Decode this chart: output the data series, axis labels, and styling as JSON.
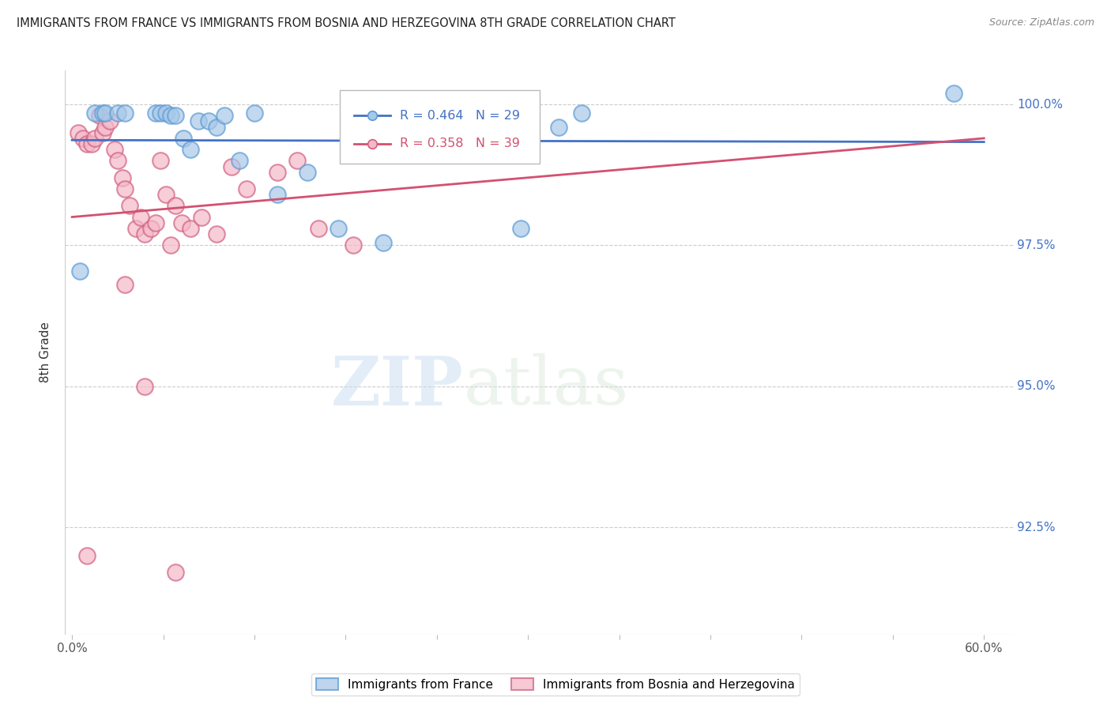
{
  "title": "IMMIGRANTS FROM FRANCE VS IMMIGRANTS FROM BOSNIA AND HERZEGOVINA 8TH GRADE CORRELATION CHART",
  "source": "Source: ZipAtlas.com",
  "ylabel": "8th Grade",
  "xlim": [
    -0.005,
    0.62
  ],
  "ylim": [
    0.906,
    1.006
  ],
  "ytick_values": [
    1.0,
    0.975,
    0.95,
    0.925
  ],
  "ytick_labels": [
    "100.0%",
    "97.5%",
    "95.0%",
    "92.5%"
  ],
  "xtick_values": [
    0.0,
    0.06,
    0.12,
    0.18,
    0.24,
    0.3,
    0.36,
    0.42,
    0.48,
    0.54,
    0.6
  ],
  "xtick_labels": [
    "0.0%",
    "",
    "",
    "",
    "",
    "",
    "",
    "",
    "",
    "",
    "60.0%"
  ],
  "legend_label1": "Immigrants from France",
  "legend_label2": "Immigrants from Bosnia and Herzegovina",
  "R1": "0.464",
  "N1": "29",
  "R2": "0.358",
  "N2": "39",
  "color_france_fill": "#a8c8e8",
  "color_france_edge": "#5b9bd5",
  "color_bosnia_fill": "#f4b8c8",
  "color_bosnia_edge": "#d06080",
  "color_france_line": "#4472C4",
  "color_bosnia_line": "#d45070",
  "color_ytick": "#4472C4",
  "color_xtick": "#555555",
  "watermark_zip": "ZIP",
  "watermark_atlas": "atlas",
  "france_x": [
    0.005,
    0.015,
    0.02,
    0.022,
    0.03,
    0.035,
    0.055,
    0.058,
    0.062,
    0.065,
    0.068,
    0.073,
    0.078,
    0.083,
    0.09,
    0.095,
    0.1,
    0.11,
    0.12,
    0.135,
    0.155,
    0.175,
    0.205,
    0.22,
    0.26,
    0.295,
    0.32,
    0.335,
    0.58
  ],
  "france_y": [
    0.9705,
    0.9985,
    0.9985,
    0.9985,
    0.9985,
    0.9985,
    0.9985,
    0.9985,
    0.9985,
    0.998,
    0.998,
    0.994,
    0.992,
    0.997,
    0.997,
    0.996,
    0.998,
    0.99,
    0.9985,
    0.984,
    0.988,
    0.978,
    0.9755,
    0.9985,
    0.9985,
    0.978,
    0.996,
    0.9985,
    1.002
  ],
  "bosnia_x": [
    0.004,
    0.007,
    0.01,
    0.013,
    0.015,
    0.018,
    0.02,
    0.022,
    0.025,
    0.028,
    0.03,
    0.033,
    0.035,
    0.038,
    0.042,
    0.045,
    0.048,
    0.052,
    0.055,
    0.058,
    0.062,
    0.065,
    0.068,
    0.072,
    0.078,
    0.085,
    0.095,
    0.105,
    0.115,
    0.135,
    0.148,
    0.162,
    0.185,
    0.21,
    0.28,
    0.01,
    0.068,
    0.035,
    0.048
  ],
  "bosnia_y": [
    0.995,
    0.994,
    0.993,
    0.993,
    0.994,
    0.998,
    0.995,
    0.996,
    0.997,
    0.992,
    0.99,
    0.987,
    0.985,
    0.982,
    0.978,
    0.98,
    0.977,
    0.978,
    0.979,
    0.99,
    0.984,
    0.975,
    0.982,
    0.979,
    0.978,
    0.98,
    0.977,
    0.989,
    0.985,
    0.988,
    0.99,
    0.978,
    0.975,
    0.995,
    0.999,
    0.92,
    0.917,
    0.968,
    0.95
  ]
}
